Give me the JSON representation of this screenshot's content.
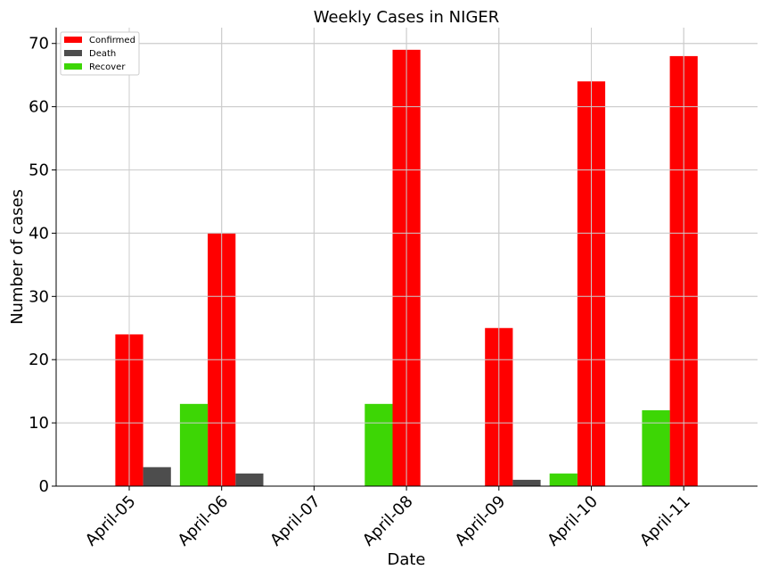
{
  "chart_data": {
    "type": "bar",
    "title": "Weekly Cases in NIGER",
    "xlabel": "Date",
    "ylabel": "Number of cases",
    "categories": [
      "April-05",
      "April-06",
      "April-07",
      "April-08",
      "April-09",
      "April-10",
      "April-11"
    ],
    "series": [
      {
        "name": "Confirmed",
        "color": "#ff0000",
        "values": [
          24,
          40,
          0,
          69,
          25,
          64,
          68
        ]
      },
      {
        "name": "Death",
        "color": "#4d4d4d",
        "values": [
          3,
          2,
          0,
          0,
          1,
          0,
          0
        ]
      },
      {
        "name": "Recover",
        "color": "#3dd605",
        "values": [
          0,
          13,
          0,
          13,
          0,
          2,
          12
        ]
      }
    ],
    "ylim": [
      0,
      72.5
    ],
    "yticks": [
      0,
      10,
      20,
      30,
      40,
      50,
      60,
      70
    ],
    "grid": true,
    "legend": "top-left"
  }
}
